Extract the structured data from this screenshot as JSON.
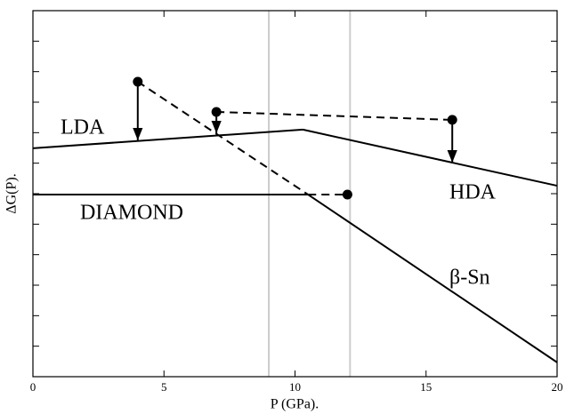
{
  "chart_data": {
    "type": "line",
    "x_label": "P (GPa).",
    "y_label": "ΔG(P).",
    "xlim": [
      0,
      20
    ],
    "xticks": [
      0,
      5,
      10,
      15,
      20
    ],
    "ylim": [
      0,
      12
    ],
    "yticks": [
      1,
      2,
      3,
      4,
      5,
      6,
      7,
      8,
      9,
      10,
      11
    ],
    "series": [
      {
        "name": "LDA",
        "color": "#000000",
        "x": [
          0,
          10.3
        ],
        "values": [
          7.49,
          8.1
        ]
      },
      {
        "name": "HDA",
        "color": "#000000",
        "x": [
          10.3,
          20
        ],
        "values": [
          8.1,
          6.26
        ]
      },
      {
        "name": "DIAMOND",
        "color": "#000000",
        "x": [
          0,
          10.5
        ],
        "values": [
          5.97,
          5.97
        ]
      },
      {
        "name": "β-Sn",
        "color": "#000000",
        "x": [
          10.5,
          20
        ],
        "values": [
          5.97,
          0.47
        ]
      }
    ],
    "dashed_lines": [
      {
        "x": [
          4,
          10.5
        ],
        "values": [
          9.67,
          5.97
        ]
      },
      {
        "x": [
          7,
          16
        ],
        "values": [
          8.68,
          8.42
        ]
      },
      {
        "x": [
          10.5,
          12
        ],
        "values": [
          5.97,
          5.97
        ]
      }
    ],
    "points": {
      "x": [
        4,
        7,
        16,
        12
      ],
      "values": [
        9.67,
        8.68,
        8.42,
        5.97
      ]
    },
    "arrows": [
      {
        "x": 4,
        "values": [
          9.67,
          7.75
        ]
      },
      {
        "x": 7,
        "values": [
          8.68,
          7.98
        ]
      },
      {
        "x": 16,
        "values": [
          8.42,
          7.02
        ]
      }
    ],
    "reference_lines": {
      "x": [
        9,
        12.1
      ],
      "color": "#cccccc"
    }
  }
}
